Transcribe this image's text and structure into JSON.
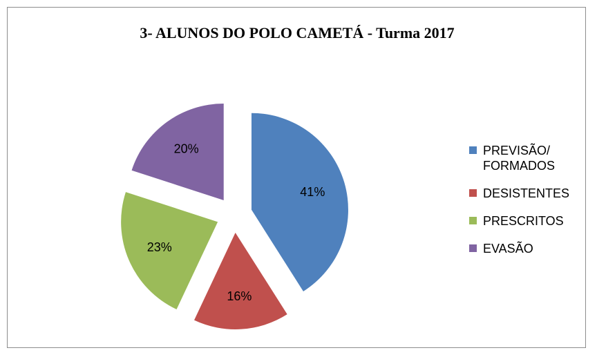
{
  "chart_data": {
    "type": "pie",
    "title": "3- ALUNOS DO POLO CAMETÁ - Turma 2017",
    "slices": [
      {
        "label": "PREVISÃO/ FORMADOS",
        "legend_lines": [
          "PREVISÃO/",
          "FORMADOS"
        ],
        "value": 41,
        "display": "41%",
        "color": "#4F81BD"
      },
      {
        "label": "DESISTENTES",
        "legend_lines": [
          "DESISTENTES"
        ],
        "value": 16,
        "display": "16%",
        "color": "#C0504D"
      },
      {
        "label": "PRESCRITOS",
        "legend_lines": [
          "PRESCRITOS"
        ],
        "value": 23,
        "display": "23%",
        "color": "#9BBB59"
      },
      {
        "label": "EVASÃO",
        "legend_lines": [
          "EVASÃO"
        ],
        "value": 20,
        "display": "20%",
        "color": "#8064A2"
      }
    ],
    "exploded": true,
    "legend_position": "right"
  }
}
